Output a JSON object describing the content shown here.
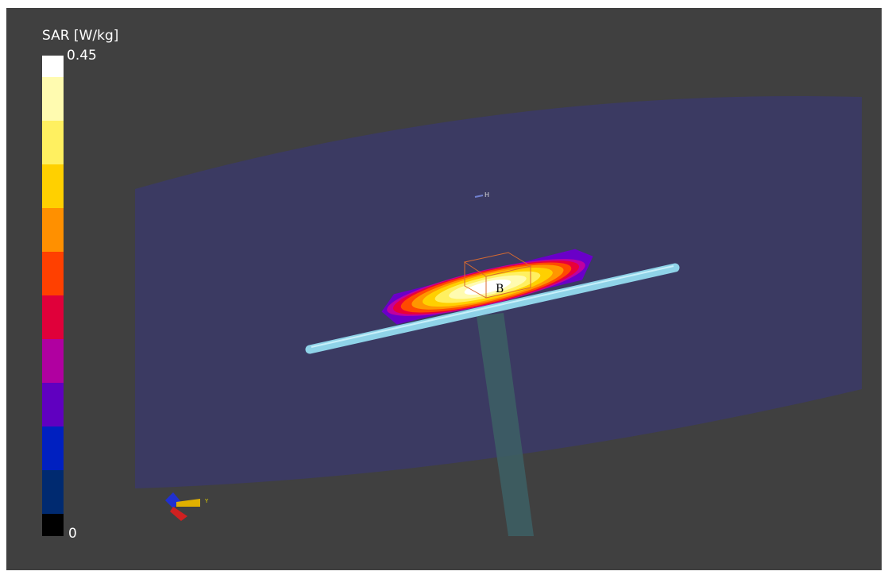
{
  "colorbar": {
    "title": "SAR [W/kg]",
    "max_label": "0.45",
    "min_label": "0"
  },
  "scene": {
    "source_label": "H",
    "box_label": "B",
    "axis_label": "Y"
  }
}
